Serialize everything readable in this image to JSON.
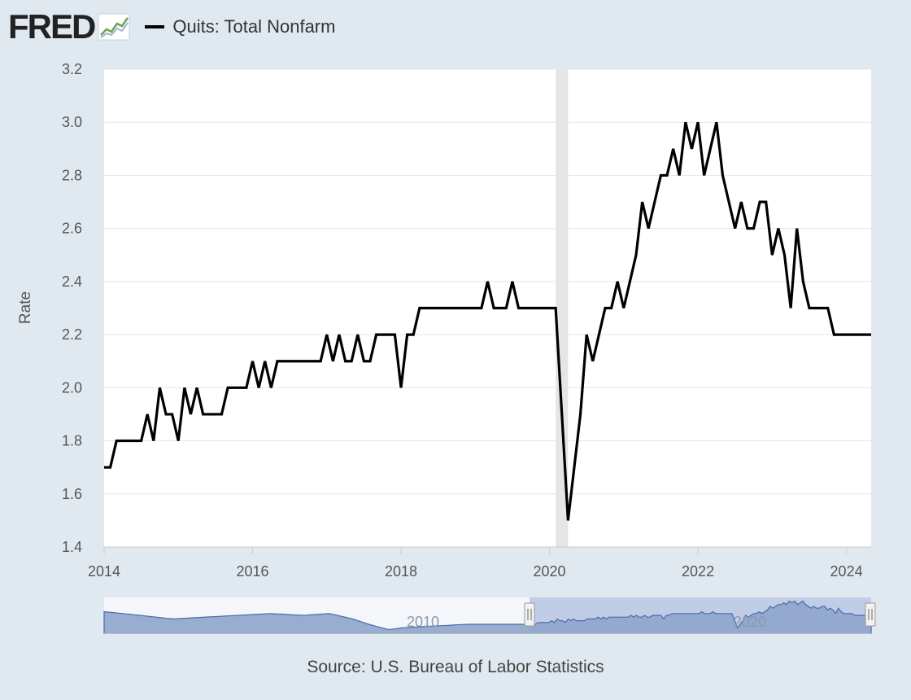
{
  "header": {
    "logo_text": "FRED",
    "legend_label": "Quits: Total Nonfarm"
  },
  "colors": {
    "series": "#000000",
    "background": "#e1e9f0",
    "plot_background": "#ffffff",
    "recession_band": "#e5e5e5",
    "navigator_fill": "#8fa5cb",
    "navigator_line": "#4a6aa8",
    "navigator_selected": "#c1cde6"
  },
  "source": "Source: U.S. Bureau of Labor Statistics",
  "chart_data": {
    "type": "line",
    "title": "",
    "xlabel": "",
    "ylabel": "Rate",
    "xlim": [
      "2014-01",
      "2024-05"
    ],
    "ylim": [
      1.4,
      3.2
    ],
    "y_ticks": [
      1.4,
      1.6,
      1.8,
      2.0,
      2.2,
      2.4,
      2.6,
      2.8,
      3.0,
      3.2
    ],
    "x_ticks": [
      "2014",
      "2016",
      "2018",
      "2020",
      "2022",
      "2024"
    ],
    "grid": "horizontal",
    "recession_shading": [
      {
        "start": "2020-02",
        "end": "2020-04"
      }
    ],
    "series": [
      {
        "name": "Quits: Total Nonfarm",
        "start": "2014-01",
        "frequency": "monthly",
        "values": [
          1.7,
          1.7,
          1.8,
          1.8,
          1.8,
          1.8,
          1.8,
          1.9,
          1.8,
          2.0,
          1.9,
          1.9,
          1.8,
          2.0,
          1.9,
          2.0,
          1.9,
          1.9,
          1.9,
          1.9,
          2.0,
          2.0,
          2.0,
          2.0,
          2.1,
          2.0,
          2.1,
          2.0,
          2.1,
          2.1,
          2.1,
          2.1,
          2.1,
          2.1,
          2.1,
          2.1,
          2.2,
          2.1,
          2.2,
          2.1,
          2.1,
          2.2,
          2.1,
          2.1,
          2.2,
          2.2,
          2.2,
          2.2,
          2.0,
          2.2,
          2.2,
          2.3,
          2.3,
          2.3,
          2.3,
          2.3,
          2.3,
          2.3,
          2.3,
          2.3,
          2.3,
          2.3,
          2.4,
          2.3,
          2.3,
          2.3,
          2.4,
          2.3,
          2.3,
          2.3,
          2.3,
          2.3,
          2.3,
          2.3,
          1.9,
          1.5,
          1.7,
          1.9,
          2.2,
          2.1,
          2.2,
          2.3,
          2.3,
          2.4,
          2.3,
          2.4,
          2.5,
          2.7,
          2.6,
          2.7,
          2.8,
          2.8,
          2.9,
          2.8,
          3.0,
          2.9,
          3.0,
          2.8,
          2.9,
          3.0,
          2.8,
          2.7,
          2.6,
          2.7,
          2.6,
          2.6,
          2.7,
          2.7,
          2.5,
          2.6,
          2.5,
          2.3,
          2.6,
          2.4,
          2.3,
          2.3,
          2.3,
          2.3,
          2.2,
          2.2,
          2.2,
          2.2,
          2.2,
          2.2,
          2.2
        ]
      }
    ],
    "navigator": {
      "x_labels": [
        "2010",
        "2020"
      ],
      "selected_range": [
        "2014-01",
        "2024-05"
      ]
    }
  }
}
